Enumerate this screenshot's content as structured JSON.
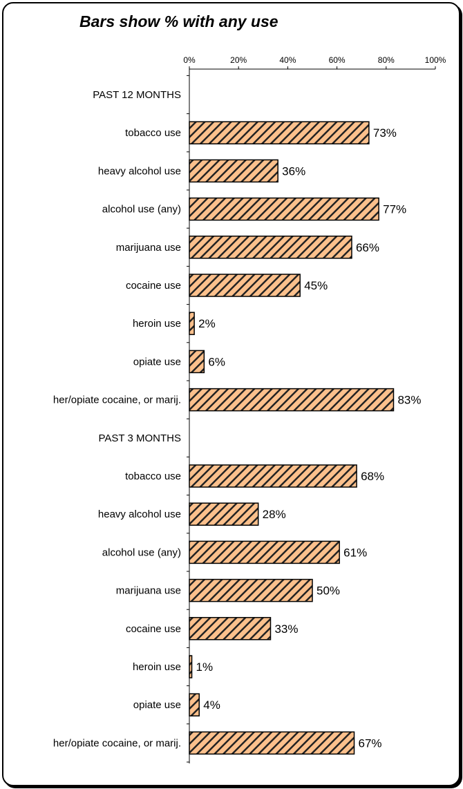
{
  "chart_data": {
    "type": "bar",
    "orientation": "horizontal",
    "title": "Bars show % with any use",
    "xlim": [
      0,
      100
    ],
    "x_ticks": [
      "0%",
      "20%",
      "40%",
      "60%",
      "80%",
      "100%"
    ],
    "grid": false,
    "bar_fill": "#fbc08c",
    "bar_hatch": "#222222",
    "rows": [
      {
        "label": "PAST 12 MONTHS",
        "value": null,
        "value_label": ""
      },
      {
        "label": "tobacco use",
        "value": 73,
        "value_label": "73%"
      },
      {
        "label": "heavy alcohol use",
        "value": 36,
        "value_label": "36%"
      },
      {
        "label": "alcohol use (any)",
        "value": 77,
        "value_label": "77%"
      },
      {
        "label": "marijuana use",
        "value": 66,
        "value_label": "66%"
      },
      {
        "label": "cocaine use",
        "value": 45,
        "value_label": "45%"
      },
      {
        "label": "heroin use",
        "value": 2,
        "value_label": "2%"
      },
      {
        "label": "opiate use",
        "value": 6,
        "value_label": "6%"
      },
      {
        "label": "her/opiate cocaine, or marij.",
        "value": 83,
        "value_label": "83%"
      },
      {
        "label": "PAST 3 MONTHS",
        "value": null,
        "value_label": ""
      },
      {
        "label": "tobacco use",
        "value": 68,
        "value_label": "68%"
      },
      {
        "label": "heavy alcohol use",
        "value": 28,
        "value_label": "28%"
      },
      {
        "label": "alcohol use (any)",
        "value": 61,
        "value_label": "61%"
      },
      {
        "label": "marijuana use",
        "value": 50,
        "value_label": "50%"
      },
      {
        "label": "cocaine use",
        "value": 33,
        "value_label": "33%"
      },
      {
        "label": "heroin use",
        "value": 1,
        "value_label": "1%"
      },
      {
        "label": "opiate use",
        "value": 4,
        "value_label": "4%"
      },
      {
        "label": "her/opiate cocaine, or marij.",
        "value": 67,
        "value_label": "67%"
      }
    ]
  }
}
